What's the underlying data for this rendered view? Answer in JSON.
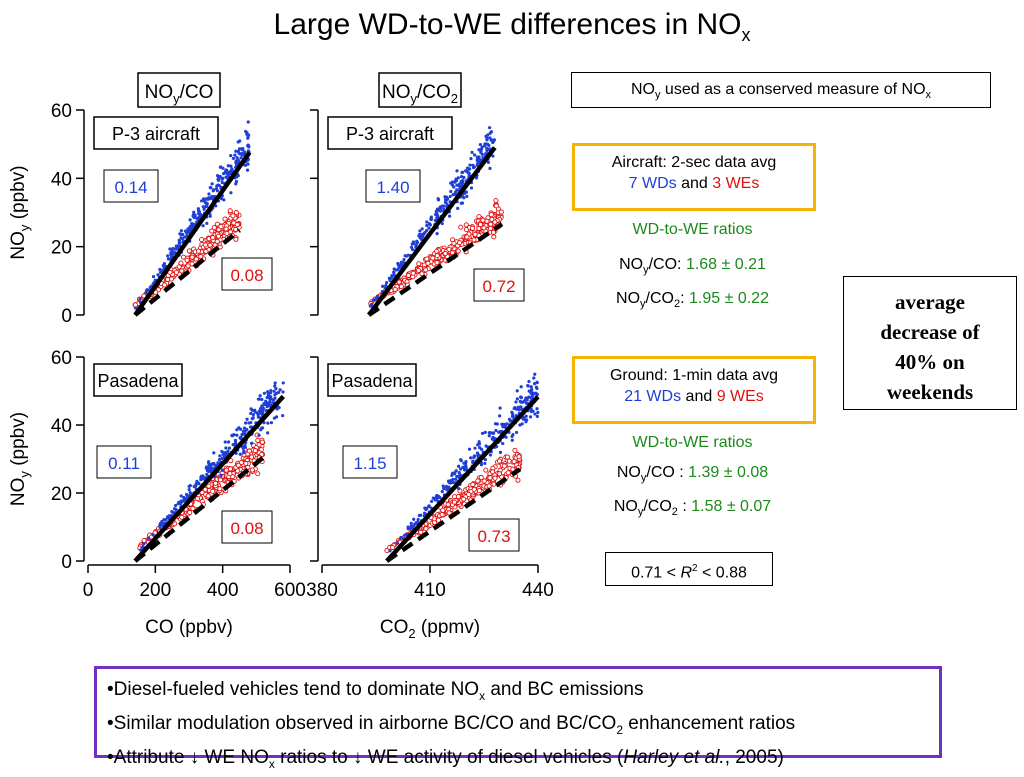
{
  "title": {
    "main": "Large WD-to-WE differences in NO",
    "sub": "x"
  },
  "conserved_note": {
    "pre": "NO",
    "sub_y": "y",
    "mid": " used as a conserved measure of NO",
    "sub_x": "x"
  },
  "aircraft_box": {
    "line1": "Aircraft: 2-sec data avg",
    "wd": "7 WDs",
    "and": " and ",
    "we": "3 WEs"
  },
  "aircraft_ratios": {
    "heading": "WD-to-WE ratios",
    "co_label": "NOy/CO:",
    "co_value": "1.68 ± 0.21",
    "co2_label": "NOy/CO2:",
    "co2_value": "1.95 ± 0.22"
  },
  "ground_box": {
    "line1": "Ground: 1-min data avg",
    "wd": "21 WDs",
    "and": " and ",
    "we": "9 WEs"
  },
  "ground_ratios": {
    "heading": "WD-to-WE ratios",
    "co_label": "NOy/CO :",
    "co_value": "1.39 ± 0.08",
    "co2_label": "NOy/CO2 :",
    "co2_value": "1.58 ± 0.07"
  },
  "average_box": {
    "line1": "average",
    "line2": "decrease of",
    "line3": "40% on",
    "line4": "weekends"
  },
  "r2_box": {
    "text": "0.71 < R2 < 0.88"
  },
  "bullets": [
    "•Diesel-fueled vehicles tend to dominate NOx and BC emissions",
    "•Similar modulation observed in airborne BC/CO and BC/CO2 enhancement ratios",
    "•Attribute ↓ WE NOx ratios to ↓ WE activity of diesel vehicles (Harley et al., 2005)"
  ],
  "colors": {
    "weekday": "#1f3fd8",
    "weekend": "#e01010",
    "green": "#1a8a1a",
    "orange_border": "#f4b400",
    "purple_border": "#7030c0"
  },
  "chart_data": [
    {
      "type": "scatter",
      "column_title": "NOy/CO",
      "panel_label": "P-3 aircraft",
      "xlabel": "CO (ppbv)",
      "ylabel": "NOy (ppbv)",
      "xlim": [
        0,
        600
      ],
      "ylim": [
        0,
        60
      ],
      "xticks": [
        "0",
        "200",
        "400",
        "600"
      ],
      "yticks": [
        "0",
        "20",
        "40",
        "60"
      ],
      "series": [
        {
          "name": "WD",
          "slope_label": "0.14",
          "slope": 0.14,
          "x_range": [
            140,
            480
          ]
        },
        {
          "name": "WE",
          "slope_label": "0.08",
          "slope": 0.08,
          "x_range": [
            140,
            450
          ]
        }
      ]
    },
    {
      "type": "scatter",
      "column_title": "NOy/CO2",
      "panel_label": "P-3 aircraft",
      "xlabel": "CO2 (ppmv)",
      "ylabel": "NOy (ppbv)",
      "xlim": [
        380,
        440
      ],
      "ylim": [
        0,
        60
      ],
      "xticks": [
        "380",
        "410",
        "440"
      ],
      "yticks": [
        "0",
        "20",
        "40",
        "60"
      ],
      "series": [
        {
          "name": "WD",
          "slope_label": "1.40",
          "slope": 1.4,
          "x_range": [
            393,
            428
          ]
        },
        {
          "name": "WE",
          "slope_label": "0.72",
          "slope": 0.72,
          "x_range": [
            393,
            430
          ]
        }
      ]
    },
    {
      "type": "scatter",
      "panel_label": "Pasadena",
      "xlabel": "CO (ppbv)",
      "ylabel": "NOy (ppbv)",
      "xlim": [
        0,
        600
      ],
      "ylim": [
        0,
        60
      ],
      "xticks": [
        "0",
        "200",
        "400",
        "600"
      ],
      "yticks": [
        "0",
        "20",
        "40",
        "60"
      ],
      "series": [
        {
          "name": "WD",
          "slope_label": "0.11",
          "slope": 0.11,
          "x_range": [
            140,
            580
          ]
        },
        {
          "name": "WE",
          "slope_label": "0.08",
          "slope": 0.08,
          "x_range": [
            140,
            520
          ]
        }
      ]
    },
    {
      "type": "scatter",
      "panel_label": "Pasadena",
      "xlabel": "CO2 (ppmv)",
      "ylabel": "NOy (ppbv)",
      "xlim": [
        380,
        440
      ],
      "ylim": [
        0,
        60
      ],
      "xticks": [
        "380",
        "410",
        "440"
      ],
      "yticks": [
        "0",
        "20",
        "40",
        "60"
      ],
      "series": [
        {
          "name": "WD",
          "slope_label": "1.15",
          "slope": 1.15,
          "x_range": [
            398,
            440
          ]
        },
        {
          "name": "WE",
          "slope_label": "0.73",
          "slope": 0.73,
          "x_range": [
            398,
            435
          ]
        }
      ]
    }
  ]
}
